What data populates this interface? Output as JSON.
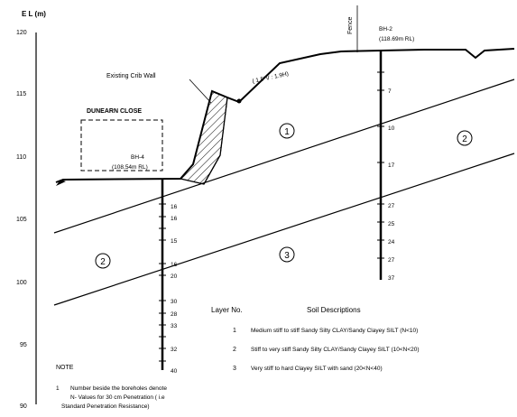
{
  "axis": {
    "label": "E L (m)",
    "ticks": [
      "120",
      "115",
      "110",
      "105",
      "100",
      "95",
      "90"
    ]
  },
  "labels": {
    "crib_wall": "Existing Crib Wall",
    "close": "DUNEARN CLOSE",
    "slope": "( 1.5\"V : 1.9H)",
    "fence": "Fence"
  },
  "boreholes": [
    {
      "name": "BH-4",
      "rl": "(108.54m RL)",
      "n_values": [
        "16",
        "16",
        "15",
        "16",
        "20",
        "30",
        "28",
        "33",
        "32",
        "40"
      ]
    },
    {
      "name": "BH-2",
      "rl": "(118.69m RL)",
      "n_values": [
        "7",
        "10",
        "17",
        "27",
        "25",
        "24",
        "27",
        "37"
      ]
    }
  ],
  "layer_markers": [
    {
      "text": "1"
    },
    {
      "text": "2"
    },
    {
      "text": "2"
    },
    {
      "text": "3"
    }
  ],
  "legend": {
    "header_layer": "Layer No.",
    "header_desc": "Soil Descriptions",
    "rows": [
      {
        "no": "1",
        "desc": "Medium stiff to stiff Sandy Silty CLAY/Sandy Clayey SILT (N<10)"
      },
      {
        "no": "2",
        "desc": "Stiff to very stiff Sandy Silty CLAY/Sandy Clayey SILT (10<N<20)"
      },
      {
        "no": "3",
        "desc": "Very stiff to hard Clayey SILT with sand (20<N<40)"
      }
    ]
  },
  "note": {
    "title": "NOTE",
    "number": "1",
    "lines": [
      "Number beside the boreholes denote",
      "N- Values for 30 cm Penetration ( i.e",
      "Standard Penetration Resistance)"
    ]
  }
}
